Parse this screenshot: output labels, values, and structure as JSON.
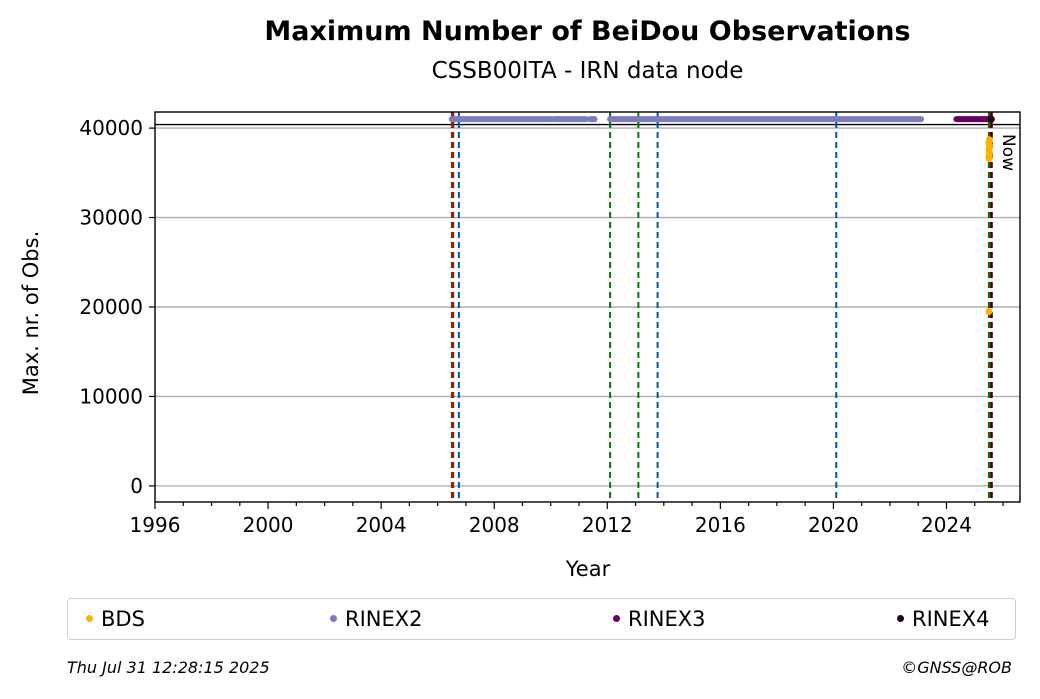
{
  "chart_data": {
    "type": "scatter",
    "title": "Maximum Number of BeiDou Observations",
    "subtitle": "CSSB00ITA - IRN data node",
    "xlabel": "Year",
    "ylabel": "Max. nr. of Obs.",
    "xlim": [
      1996,
      2026.6
    ],
    "ylim": [
      -1800,
      41800
    ],
    "xticks": [
      1996,
      2000,
      2004,
      2008,
      2012,
      2016,
      2020,
      2024
    ],
    "yticks": [
      0,
      10000,
      20000,
      30000,
      40000
    ],
    "grid": "horizontal",
    "reference_line": 40400,
    "now_label": "Now",
    "now_x": 2025.58,
    "vlines": [
      {
        "x": 2006.5,
        "color": "#007a00",
        "style": "dashed"
      },
      {
        "x": 2006.55,
        "color": "#d40000",
        "style": "dashed"
      },
      {
        "x": 2006.75,
        "color": "#0055aa",
        "style": "dashed"
      },
      {
        "x": 2012.1,
        "color": "#007a00",
        "style": "dashed"
      },
      {
        "x": 2013.1,
        "color": "#007a00",
        "style": "dashed"
      },
      {
        "x": 2013.78,
        "color": "#0055aa",
        "style": "dashed"
      },
      {
        "x": 2020.1,
        "color": "#0055aa",
        "style": "dashed"
      },
      {
        "x": 2025.5,
        "color": "#007a00",
        "style": "dashed"
      },
      {
        "x": 2025.55,
        "color": "#d40000",
        "style": "dashed"
      },
      {
        "x": 2025.6,
        "color": "#000000",
        "style": "dashed"
      }
    ],
    "series": [
      {
        "name": "BDS",
        "color": "#ffb000",
        "points": [
          [
            2025.5,
            19500
          ],
          [
            2025.5,
            36800
          ],
          [
            2025.52,
            37200
          ],
          [
            2025.5,
            37600
          ],
          [
            2025.52,
            38000
          ],
          [
            2025.5,
            38400
          ],
          [
            2025.52,
            38700
          ],
          [
            2025.51,
            36600
          ]
        ]
      },
      {
        "name": "RINEX2",
        "color": "#7b7bbd",
        "segments": [
          [
            2006.5,
            2010.0
          ],
          [
            2010.1,
            2011.25
          ],
          [
            2011.4,
            2011.55
          ],
          [
            2012.1,
            2023.1
          ]
        ],
        "value": 41000
      },
      {
        "name": "RINEX3",
        "color": "#6b0060",
        "segments": [
          [
            2024.35,
            2025.6
          ]
        ],
        "value": 41000
      },
      {
        "name": "RINEX4",
        "color": "#1f0020",
        "points": [
          [
            2025.58,
            41000
          ]
        ]
      }
    ]
  },
  "footer": {
    "timestamp": "Thu Jul 31 12:28:15 2025",
    "credit": "©GNSS@ROB"
  }
}
